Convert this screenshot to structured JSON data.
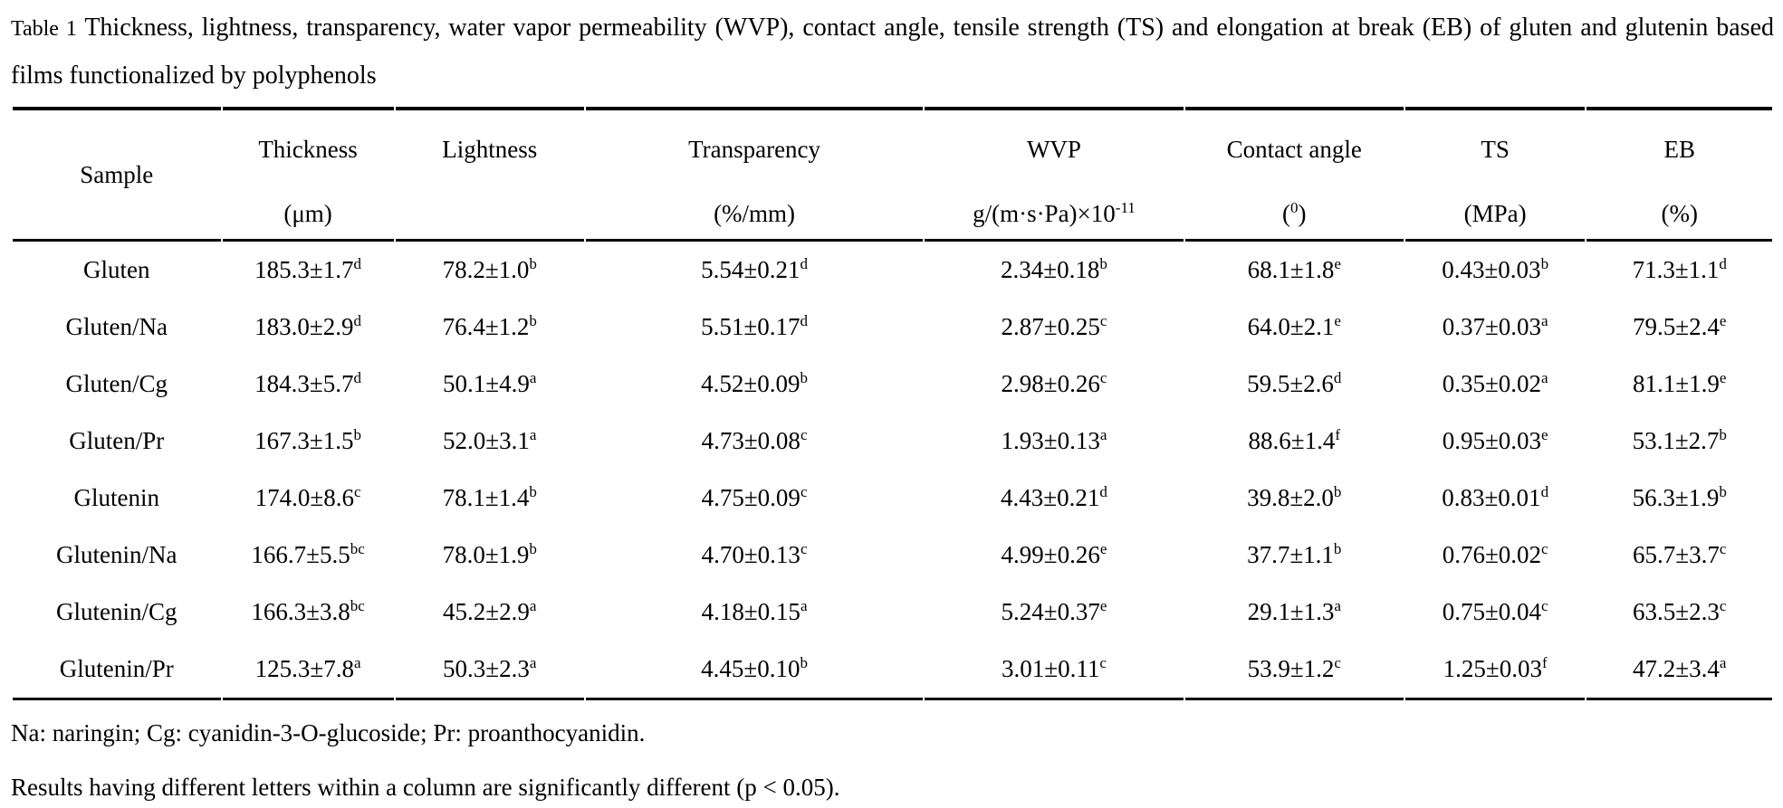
{
  "page": {
    "background_color": "#ffffff",
    "text_color": "#000000"
  },
  "caption": {
    "label": "Table 1",
    "text": "Thickness, lightness, transparency, water vapor permeability (WVP), contact angle, tensile strength (TS) and elongation at break (EB) of gluten and glutenin based films functionalized by polyphenols"
  },
  "table": {
    "columns": [
      {
        "name": "Sample",
        "unit_pre": "",
        "unit_sup": "",
        "unit_post": ""
      },
      {
        "name": "Thickness",
        "unit_pre": "(μm)",
        "unit_sup": "",
        "unit_post": ""
      },
      {
        "name": "Lightness",
        "unit_pre": "",
        "unit_sup": "",
        "unit_post": ""
      },
      {
        "name": "Transparency",
        "unit_pre": "(%/mm)",
        "unit_sup": "",
        "unit_post": ""
      },
      {
        "name": "WVP",
        "unit_pre": "g/(m·s·Pa)×10",
        "unit_sup": "-11",
        "unit_post": ""
      },
      {
        "name": "Contact angle",
        "unit_pre": "(",
        "unit_sup": "0",
        "unit_post": ")"
      },
      {
        "name": "TS",
        "unit_pre": "(MPa)",
        "unit_sup": "",
        "unit_post": ""
      },
      {
        "name": "EB",
        "unit_pre": "(%)",
        "unit_sup": "",
        "unit_post": ""
      }
    ],
    "rows": [
      {
        "sample": "Gluten",
        "cells": [
          {
            "v": "185.3±1.7",
            "s": "d"
          },
          {
            "v": "78.2±1.0",
            "s": "b"
          },
          {
            "v": "5.54±0.21",
            "s": "d"
          },
          {
            "v": "2.34±0.18",
            "s": "b"
          },
          {
            "v": "68.1±1.8",
            "s": "e"
          },
          {
            "v": "0.43±0.03",
            "s": "b"
          },
          {
            "v": "71.3±1.1",
            "s": "d"
          }
        ]
      },
      {
        "sample": "Gluten/Na",
        "cells": [
          {
            "v": "183.0±2.9",
            "s": "d"
          },
          {
            "v": "76.4±1.2",
            "s": "b"
          },
          {
            "v": "5.51±0.17",
            "s": "d"
          },
          {
            "v": "2.87±0.25",
            "s": "c"
          },
          {
            "v": "64.0±2.1",
            "s": "e"
          },
          {
            "v": "0.37±0.03",
            "s": "a"
          },
          {
            "v": "79.5±2.4",
            "s": "e"
          }
        ]
      },
      {
        "sample": "Gluten/Cg",
        "cells": [
          {
            "v": "184.3±5.7",
            "s": "d"
          },
          {
            "v": "50.1±4.9",
            "s": "a"
          },
          {
            "v": "4.52±0.09",
            "s": "b"
          },
          {
            "v": "2.98±0.26",
            "s": "c"
          },
          {
            "v": "59.5±2.6",
            "s": "d"
          },
          {
            "v": "0.35±0.02",
            "s": "a"
          },
          {
            "v": "81.1±1.9",
            "s": "e"
          }
        ]
      },
      {
        "sample": "Gluten/Pr",
        "cells": [
          {
            "v": "167.3±1.5",
            "s": "b"
          },
          {
            "v": "52.0±3.1",
            "s": "a"
          },
          {
            "v": "4.73±0.08",
            "s": "c"
          },
          {
            "v": "1.93±0.13",
            "s": "a"
          },
          {
            "v": "88.6±1.4",
            "s": "f"
          },
          {
            "v": "0.95±0.03",
            "s": "e"
          },
          {
            "v": "53.1±2.7",
            "s": "b"
          }
        ]
      },
      {
        "sample": "Glutenin",
        "cells": [
          {
            "v": "174.0±8.6",
            "s": "c"
          },
          {
            "v": "78.1±1.4",
            "s": "b"
          },
          {
            "v": "4.75±0.09",
            "s": "c"
          },
          {
            "v": "4.43±0.21",
            "s": "d"
          },
          {
            "v": "39.8±2.0",
            "s": "b"
          },
          {
            "v": "0.83±0.01",
            "s": "d"
          },
          {
            "v": "56.3±1.9",
            "s": "b"
          }
        ]
      },
      {
        "sample": "Glutenin/Na",
        "cells": [
          {
            "v": "166.7±5.5",
            "s": "bc"
          },
          {
            "v": "78.0±1.9",
            "s": "b"
          },
          {
            "v": "4.70±0.13",
            "s": "c"
          },
          {
            "v": "4.99±0.26",
            "s": "e"
          },
          {
            "v": "37.7±1.1",
            "s": "b"
          },
          {
            "v": "0.76±0.02",
            "s": "c"
          },
          {
            "v": "65.7±3.7",
            "s": "c"
          }
        ]
      },
      {
        "sample": "Glutenin/Cg",
        "cells": [
          {
            "v": "166.3±3.8",
            "s": "bc"
          },
          {
            "v": "45.2±2.9",
            "s": "a"
          },
          {
            "v": "4.18±0.15",
            "s": "a"
          },
          {
            "v": "5.24±0.37",
            "s": "e"
          },
          {
            "v": "29.1±1.3",
            "s": "a"
          },
          {
            "v": "0.75±0.04",
            "s": "c"
          },
          {
            "v": "63.5±2.3",
            "s": "c"
          }
        ]
      },
      {
        "sample": "Glutenin/Pr",
        "cells": [
          {
            "v": "125.3±7.8",
            "s": "a"
          },
          {
            "v": "50.3±2.3",
            "s": "a"
          },
          {
            "v": "4.45±0.10",
            "s": "b"
          },
          {
            "v": "3.01±0.11",
            "s": "c"
          },
          {
            "v": "53.9±1.2",
            "s": "c"
          },
          {
            "v": "1.25±0.03",
            "s": "f"
          },
          {
            "v": "47.2±3.4",
            "s": "a"
          }
        ]
      }
    ]
  },
  "footnotes": [
    "Na: naringin; Cg: cyanidin-3-O-glucoside; Pr: proanthocyanidin.",
    "Results having different letters within a column are significantly different (p < 0.05)."
  ]
}
